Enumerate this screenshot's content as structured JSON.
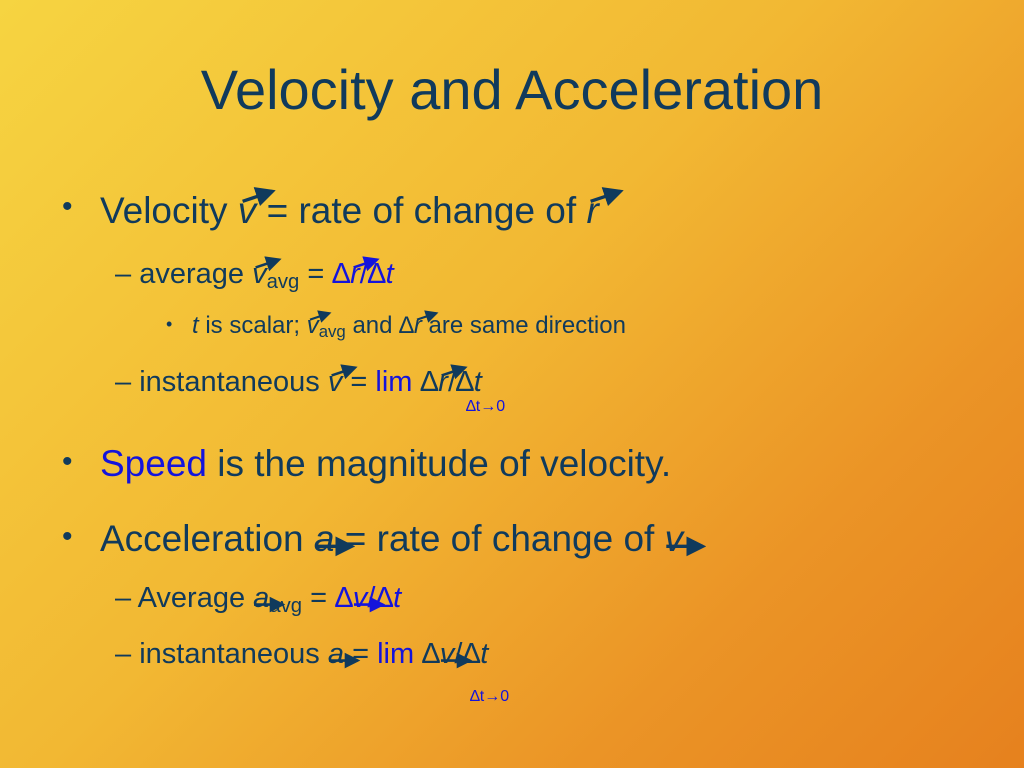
{
  "title": "Velocity and Acceleration",
  "bullets": {
    "b1": {
      "dot": "•",
      "word": "Velocity",
      "sym": "v",
      "eq": "=",
      "text": "rate of change of",
      "sym2": "r"
    },
    "b1_1": {
      "dash": "–",
      "word": "average",
      "sym": "v",
      "sub": "avg",
      "eq": "=",
      "delta": "∆",
      "r": "r",
      "slash": "/",
      "delta2": "∆",
      "t": "t"
    },
    "b1_1_1": {
      "dot": "•",
      "t": "t",
      "text1": "is scalar;",
      "v": "v",
      "sub": "avg",
      "text2": "and",
      "delta": "∆",
      "r": "r",
      "text3": "are same direction"
    },
    "b1_2": {
      "dash": "–",
      "word": "instantaneous",
      "v": "v",
      "eq": "=",
      "lim": "lim",
      "delta": "∆",
      "r": "r",
      "slash": "/",
      "delta2": "∆",
      "t": "t",
      "lim_sub": "∆t→0"
    },
    "b2": {
      "dot": "•",
      "word": "Speed",
      "text": "is the magnitude of velocity."
    },
    "b3": {
      "dot": "•",
      "word": "Acceleration",
      "sym": "a",
      "eq": "=",
      "text": "rate of change of",
      "sym2": "v"
    },
    "b3_1": {
      "dash": "–",
      "word": "Average",
      "sym": "a",
      "sub": "avg",
      "eq": "=",
      "delta": "∆",
      "v": "v",
      "slash": "/",
      "delta2": "∆",
      "t": "t"
    },
    "b3_2": {
      "dash": "–",
      "word": "instantaneous",
      "a": "a",
      "eq": "=",
      "lim": "lim",
      "delta": "∆",
      "v": "v",
      "slash": "/",
      "delta2": "∆",
      "t": "t",
      "lim_sub": "∆t→0"
    }
  },
  "colors": {
    "text": "#103a5c",
    "accent": "#1414dc",
    "bg_start": "#f6d441",
    "bg_end": "#e6811e"
  }
}
